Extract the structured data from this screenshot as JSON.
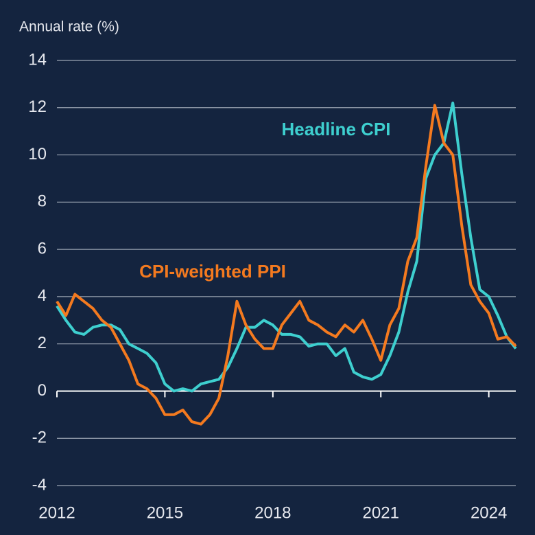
{
  "chart_data": {
    "type": "line",
    "y_label": "Annual rate (%)",
    "x": [
      2012,
      2012.25,
      2012.5,
      2012.75,
      2013,
      2013.25,
      2013.5,
      2013.75,
      2014,
      2014.25,
      2014.5,
      2014.75,
      2015,
      2015.25,
      2015.5,
      2015.75,
      2016,
      2016.25,
      2016.5,
      2016.75,
      2017,
      2017.25,
      2017.5,
      2017.75,
      2018,
      2018.25,
      2018.5,
      2018.75,
      2019,
      2019.25,
      2019.5,
      2019.75,
      2020,
      2020.25,
      2020.5,
      2020.75,
      2021,
      2021.25,
      2021.5,
      2021.75,
      2022,
      2022.25,
      2022.5,
      2022.75,
      2023,
      2023.25,
      2023.5,
      2023.75,
      2024,
      2024.25,
      2024.5,
      2024.75
    ],
    "series": [
      {
        "name": "Headline CPI",
        "color": "#3ecfcf",
        "values": [
          3.6,
          3.0,
          2.5,
          2.4,
          2.7,
          2.8,
          2.8,
          2.6,
          2.0,
          1.8,
          1.6,
          1.2,
          0.3,
          0.0,
          0.1,
          0.0,
          0.3,
          0.4,
          0.5,
          1.0,
          1.8,
          2.7,
          2.7,
          3.0,
          2.8,
          2.4,
          2.4,
          2.3,
          1.9,
          2.0,
          2.0,
          1.5,
          1.8,
          0.8,
          0.6,
          0.5,
          0.7,
          1.5,
          2.5,
          4.2,
          5.5,
          9.0,
          10.0,
          10.5,
          12.2,
          9.2,
          6.5,
          4.3,
          4.0,
          3.2,
          2.3,
          1.8
        ]
      },
      {
        "name": "CPI-weighted PPI",
        "color": "#f47a1f",
        "values": [
          3.8,
          3.2,
          4.1,
          3.8,
          3.5,
          3.0,
          2.7,
          2.0,
          1.3,
          0.3,
          0.1,
          -0.3,
          -1.0,
          -1.0,
          -0.8,
          -1.3,
          -1.4,
          -1.0,
          -0.3,
          1.5,
          3.8,
          2.8,
          2.2,
          1.8,
          1.8,
          2.8,
          3.3,
          3.8,
          3.0,
          2.8,
          2.5,
          2.3,
          2.8,
          2.5,
          3.0,
          2.2,
          1.3,
          2.8,
          3.5,
          5.5,
          6.5,
          9.5,
          12.1,
          10.5,
          10.0,
          7.0,
          4.5,
          3.8,
          3.3,
          2.2,
          2.3,
          1.9
        ]
      }
    ],
    "xlim": [
      2012,
      2024.75
    ],
    "xticks": [
      2012,
      2015,
      2018,
      2021,
      2024
    ],
    "ylim": [
      -4,
      14
    ],
    "yticks": [
      -4,
      -2,
      0,
      2,
      4,
      6,
      8,
      10,
      12,
      14
    ],
    "grid": true
  }
}
